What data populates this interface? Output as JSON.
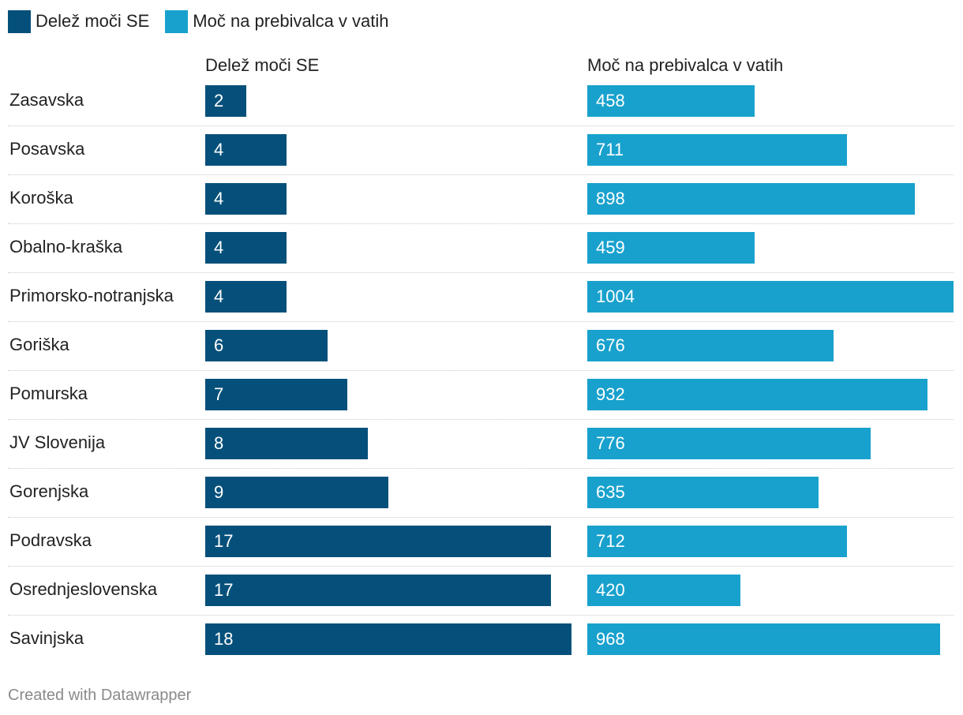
{
  "legend": [
    {
      "label": "Delež moči SE",
      "color": "#05507a"
    },
    {
      "label": "Moč na prebivalca v vatih",
      "color": "#18a1cd"
    }
  ],
  "chart_data": {
    "type": "bar",
    "orientation": "horizontal",
    "categories": [
      "Zasavska",
      "Posavska",
      "Koroška",
      "Obalno-kraška",
      "Primorsko-notranjska",
      "Goriška",
      "Pomurska",
      "JV Slovenija",
      "Gorenjska",
      "Podravska",
      "Osrednjeslovenska",
      "Savinjska"
    ],
    "series": [
      {
        "name": "Delež moči SE",
        "color": "#05507a",
        "values": [
          2,
          4,
          4,
          4,
          4,
          6,
          7,
          8,
          9,
          17,
          17,
          18
        ],
        "xlim": [
          0,
          18
        ]
      },
      {
        "name": "Moč na prebivalca v vatih",
        "color": "#18a1cd",
        "values": [
          458,
          711,
          898,
          459,
          1004,
          676,
          932,
          776,
          635,
          712,
          420,
          968
        ],
        "xlim": [
          0,
          1004
        ]
      }
    ],
    "legend_position": "top-left"
  },
  "footer": {
    "credit": "Created with Datawrapper"
  }
}
